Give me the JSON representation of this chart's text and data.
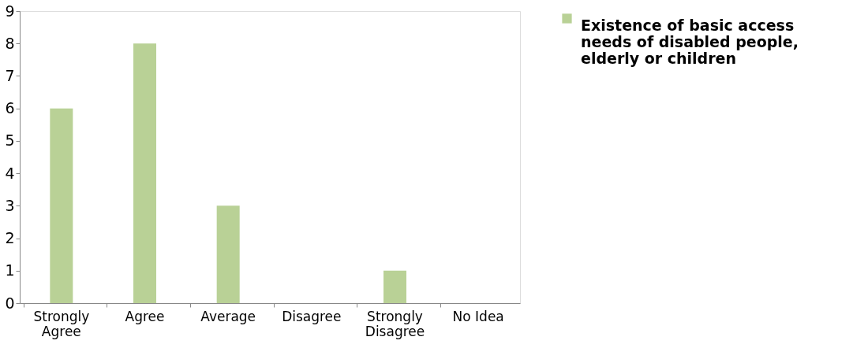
{
  "chart_data": {
    "type": "bar",
    "categories": [
      "Strongly Agree",
      "Agree",
      "Average",
      "Disagree",
      "Strongly Disagree",
      "No Idea"
    ],
    "series": [
      {
        "name": "Existence of  basic access needs of disabled people, elderly or children",
        "color": "#b9d196",
        "values": [
          6,
          8,
          3,
          0,
          1,
          0
        ]
      }
    ],
    "ylim": [
      0,
      9
    ],
    "yticks": [
      0,
      1,
      2,
      3,
      4,
      5,
      6,
      7,
      8,
      9
    ],
    "grid": false,
    "legend": "right"
  }
}
